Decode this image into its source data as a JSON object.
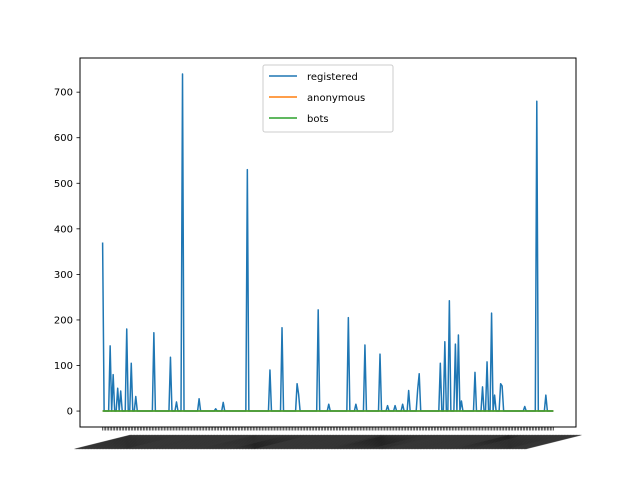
{
  "chart_data": {
    "type": "line",
    "x_count": 300,
    "ylim": [
      -35,
      775
    ],
    "yticks": [
      0,
      100,
      200,
      300,
      400,
      500,
      600,
      700
    ],
    "legend_position": "upper center",
    "grid": false,
    "series": [
      {
        "name": "registered",
        "color": "#1f77b4",
        "spikes": [
          [
            0,
            370
          ],
          [
            5,
            143
          ],
          [
            7,
            80
          ],
          [
            10,
            50
          ],
          [
            12,
            44
          ],
          [
            16,
            180
          ],
          [
            19,
            105
          ],
          [
            22,
            32
          ],
          [
            34,
            172
          ],
          [
            45,
            118
          ],
          [
            49,
            20
          ],
          [
            53,
            740
          ],
          [
            64,
            27
          ],
          [
            75,
            5
          ],
          [
            80,
            19
          ],
          [
            96,
            530
          ],
          [
            111,
            90
          ],
          [
            119,
            183
          ],
          [
            129,
            60
          ],
          [
            130,
            37
          ],
          [
            143,
            222
          ],
          [
            150,
            15
          ],
          [
            163,
            205
          ],
          [
            168,
            15
          ],
          [
            174,
            145
          ],
          [
            184,
            125
          ],
          [
            189,
            12
          ],
          [
            194,
            12
          ],
          [
            199,
            15
          ],
          [
            203,
            45
          ],
          [
            209,
            48
          ],
          [
            210,
            82
          ],
          [
            224,
            105
          ],
          [
            227,
            152
          ],
          [
            230,
            242
          ],
          [
            234,
            147
          ],
          [
            236,
            167
          ],
          [
            238,
            22
          ],
          [
            247,
            85
          ],
          [
            252,
            53
          ],
          [
            255,
            108
          ],
          [
            258,
            215
          ],
          [
            260,
            35
          ],
          [
            264,
            60
          ],
          [
            265,
            55
          ],
          [
            280,
            10
          ],
          [
            288,
            680
          ],
          [
            294,
            35
          ]
        ],
        "baseline": 0
      },
      {
        "name": "anonymous",
        "color": "#ff7f0e",
        "constant": 0
      },
      {
        "name": "bots",
        "color": "#2ca02c",
        "constant": 0
      }
    ]
  },
  "ytick_labels": [
    "0",
    "100",
    "200",
    "300",
    "400",
    "500",
    "600",
    "700"
  ],
  "legend": {
    "entries": [
      "registered",
      "anonymous",
      "bots"
    ]
  }
}
